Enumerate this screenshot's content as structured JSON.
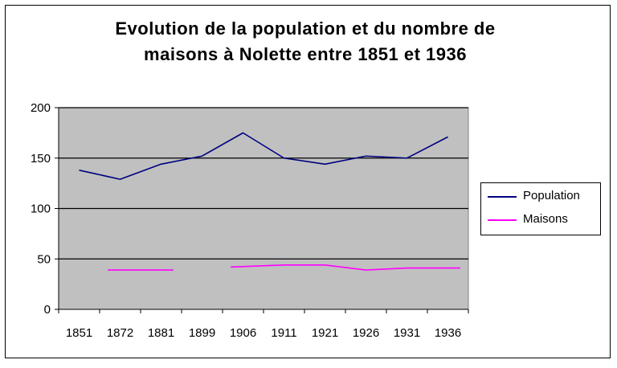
{
  "chart_data": {
    "type": "line",
    "title_lines": [
      "Evolution de la population et du nombre de",
      "maisons à Nolette entre 1851 et 1936"
    ],
    "categories": [
      "1851",
      "1872",
      "1881",
      "1899",
      "1906",
      "1911",
      "1921",
      "1926",
      "1931",
      "1936"
    ],
    "y_ticks": [
      "0",
      "50",
      "100",
      "150",
      "200"
    ],
    "ylim": [
      0,
      200
    ],
    "gridlines": [
      50,
      100,
      150,
      200
    ],
    "plot_background": "#c0c0c0",
    "legend_position": "right",
    "series": [
      {
        "name": "Population",
        "color": "#000080",
        "values": [
          138,
          129,
          144,
          152,
          175,
          150,
          144,
          152,
          150,
          171
        ]
      },
      {
        "name": "Maisons",
        "color": "#ff00ff",
        "values": [
          null,
          39,
          39,
          null,
          42,
          44,
          44,
          39,
          41,
          41
        ]
      }
    ]
  }
}
